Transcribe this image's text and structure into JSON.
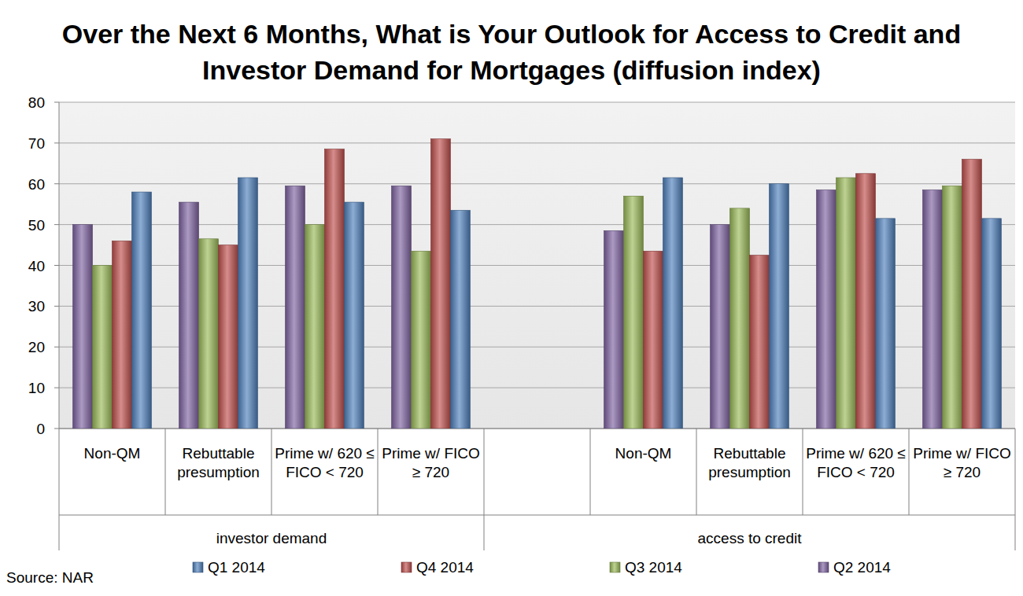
{
  "chart_data": {
    "type": "bar",
    "title": "Over the Next 6 Months, What is Your Outlook for Access to Credit and Investor Demand for Mortgages (diffusion index)",
    "annotations": [
      "Source: NAR"
    ],
    "categories": [
      "Non-QM",
      "Rebuttable presumption",
      "Prime w/ 620 ≤ FICO < 720",
      "Prime w/ FICO ≥ 720",
      null,
      "Non-QM",
      "Rebuttable presumption",
      "Prime w/ 620 ≤ FICO < 720",
      "Prime w/ FICO ≥ 720"
    ],
    "category_groups": [
      {
        "label": "investor demand",
        "count": 4
      },
      {
        "label": "access to credit",
        "count": 5
      }
    ],
    "series": [
      {
        "name": "Q2 2014",
        "color": "#8064a2",
        "values": [
          50,
          55.5,
          59.5,
          59.5,
          null,
          48.5,
          50,
          58.5,
          58.5
        ]
      },
      {
        "name": "Q3 2014",
        "color": "#9bbb59",
        "values": [
          40,
          46.5,
          50,
          43.5,
          null,
          57,
          54,
          61.5,
          59.5
        ]
      },
      {
        "name": "Q4 2014",
        "color": "#c0504d",
        "values": [
          46,
          45,
          68.5,
          71,
          null,
          43.5,
          42.5,
          62.5,
          66
        ]
      },
      {
        "name": "Q1 2014",
        "color": "#4f81bd",
        "values": [
          58,
          61.5,
          55.5,
          53.5,
          null,
          61.5,
          60,
          51.5,
          51.5
        ]
      }
    ],
    "ylim": [
      0,
      80
    ],
    "yticks": [
      0,
      10,
      20,
      30,
      40,
      50,
      60,
      70,
      80
    ],
    "grid": true,
    "legend": "bottom"
  }
}
